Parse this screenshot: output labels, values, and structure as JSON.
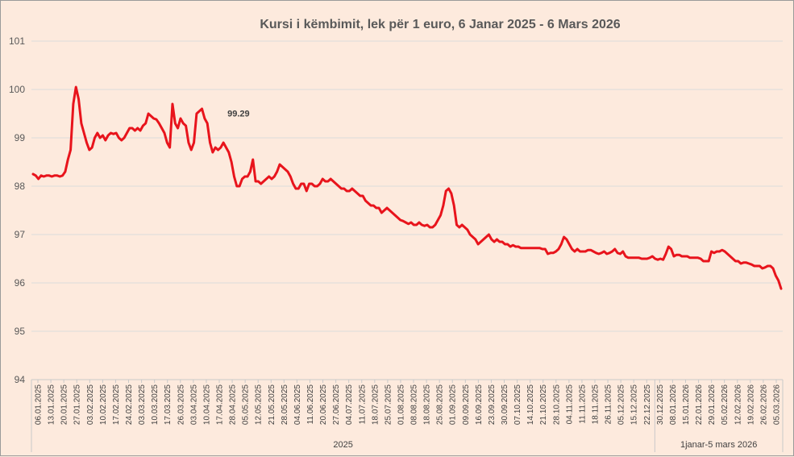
{
  "chart_data": {
    "type": "line",
    "title": "Kursi i këmbimit, lek për 1 euro, 6 Janar 2025 - 6 Mars 2026",
    "xlabel": "",
    "ylabel": "",
    "ylim": [
      94,
      101
    ],
    "yticks": [
      "94",
      "95",
      "96",
      "97",
      "98",
      "99",
      "100",
      "101"
    ],
    "grid": true,
    "line_color": "#e8141c",
    "x_tick_labels": [
      "06.01.2025",
      "13.01.2025",
      "20.01.2025",
      "27.01.2025",
      "03.02.2025",
      "10.02.2025",
      "17.02.2025",
      "24.02.2025",
      "03.03.2025",
      "10.03.2025",
      "17.03.2025",
      "26.03.2025",
      "03.04.2025",
      "10.04.2025",
      "17.04.2025",
      "28.04.2025",
      "05.05.2025",
      "12.05.2025",
      "21.05.2025",
      "28.05.2025",
      "04.06.2025",
      "11.06.2025",
      "20.06.2025",
      "27.06.2025",
      "04.07.2025",
      "11.07.2025",
      "18.07.2025",
      "25.07.2025",
      "01.08.2025",
      "08.08.2025",
      "18.08.2025",
      "25.08.2025",
      "01.09.2025",
      "09.09.2025",
      "16.09.2025",
      "23.09.2025",
      "30.09.2025",
      "07.10.2025",
      "14.10.2025",
      "21.10.2025",
      "28.10.2025",
      "04.11.2025",
      "11.11.2025",
      "18.11.2025",
      "26.11.2025",
      "05.12.2025",
      "15.12.2025",
      "22.12.2025",
      "30.12.2025",
      "08.01.2026",
      "15.01.2026",
      "22.01.2026",
      "29.01.2026",
      "05.02.2026",
      "12.02.2026",
      "19.02.2026",
      "26.02.2026",
      "05.03.2026"
    ],
    "groups": [
      {
        "label": "2025",
        "from_tick": 0,
        "to_tick": 48
      },
      {
        "label": "1janar-5 mars 2026",
        "from_tick": 48,
        "to_tick": 57
      }
    ],
    "annotations": [
      {
        "text": "99.29",
        "x_index": 77,
        "y": 99.29
      }
    ],
    "series": [
      {
        "values": [
          98.25,
          98.22,
          98.15,
          98.22,
          98.2,
          98.22,
          98.22,
          98.2,
          98.22,
          98.22,
          98.2,
          98.22,
          98.3,
          98.55,
          98.75,
          99.7,
          100.05,
          99.8,
          99.3,
          99.1,
          98.9,
          98.75,
          98.8,
          99.0,
          99.1,
          99.0,
          99.05,
          98.95,
          99.05,
          99.1,
          99.08,
          99.1,
          99.0,
          98.95,
          99.0,
          99.1,
          99.2,
          99.2,
          99.15,
          99.2,
          99.15,
          99.25,
          99.3,
          99.5,
          99.45,
          99.4,
          99.38,
          99.3,
          99.2,
          99.1,
          98.9,
          98.8,
          99.7,
          99.3,
          99.2,
          99.4,
          99.3,
          99.25,
          98.9,
          98.75,
          98.9,
          99.5,
          99.55,
          99.6,
          99.4,
          99.3,
          98.9,
          98.7,
          98.8,
          98.75,
          98.8,
          98.9,
          98.8,
          98.7,
          98.5,
          98.2,
          98.0,
          98.0,
          98.15,
          98.2,
          98.2,
          98.3,
          98.55,
          98.1,
          98.1,
          98.05,
          98.1,
          98.15,
          98.2,
          98.15,
          98.2,
          98.3,
          98.45,
          98.4,
          98.35,
          98.3,
          98.2,
          98.05,
          97.95,
          97.95,
          98.05,
          98.05,
          97.9,
          98.05,
          98.05,
          98.0,
          98.0,
          98.05,
          98.15,
          98.1,
          98.1,
          98.15,
          98.1,
          98.05,
          98.0,
          97.95,
          97.95,
          97.9,
          97.9,
          97.95,
          97.9,
          97.85,
          97.8,
          97.8,
          97.7,
          97.65,
          97.6,
          97.6,
          97.55,
          97.55,
          97.45,
          97.5,
          97.55,
          97.5,
          97.45,
          97.4,
          97.35,
          97.3,
          97.28,
          97.25,
          97.22,
          97.25,
          97.2,
          97.2,
          97.25,
          97.2,
          97.18,
          97.2,
          97.15,
          97.15,
          97.2,
          97.3,
          97.4,
          97.6,
          97.9,
          97.95,
          97.85,
          97.6,
          97.2,
          97.15,
          97.2,
          97.15,
          97.1,
          97.0,
          96.95,
          96.9,
          96.8,
          96.85,
          96.9,
          96.95,
          97.0,
          96.9,
          96.85,
          96.9,
          96.85,
          96.85,
          96.8,
          96.8,
          96.75,
          96.78,
          96.75,
          96.75,
          96.72,
          96.72,
          96.72,
          96.72,
          96.72,
          96.72,
          96.72,
          96.72,
          96.7,
          96.7,
          96.6,
          96.62,
          96.62,
          96.65,
          96.7,
          96.8,
          96.95,
          96.9,
          96.8,
          96.7,
          96.65,
          96.7,
          96.65,
          96.65,
          96.65,
          96.68,
          96.68,
          96.65,
          96.62,
          96.6,
          96.62,
          96.65,
          96.6,
          96.62,
          96.65,
          96.7,
          96.62,
          96.6,
          96.65,
          96.55,
          96.52,
          96.52,
          96.52,
          96.52,
          96.52,
          96.5,
          96.5,
          96.5,
          96.52,
          96.55,
          96.5,
          96.48,
          96.5,
          96.48,
          96.6,
          96.75,
          96.7,
          96.55,
          96.58,
          96.58,
          96.55,
          96.55,
          96.55,
          96.52,
          96.52,
          96.52,
          96.52,
          96.5,
          96.45,
          96.45,
          96.45,
          96.65,
          96.62,
          96.65,
          96.65,
          96.68,
          96.65,
          96.6,
          96.55,
          96.5,
          96.45,
          96.45,
          96.4,
          96.42,
          96.42,
          96.4,
          96.38,
          96.35,
          96.35,
          96.35,
          96.3,
          96.32,
          96.35,
          96.35,
          96.3,
          96.15,
          96.05,
          95.88
        ]
      }
    ]
  }
}
